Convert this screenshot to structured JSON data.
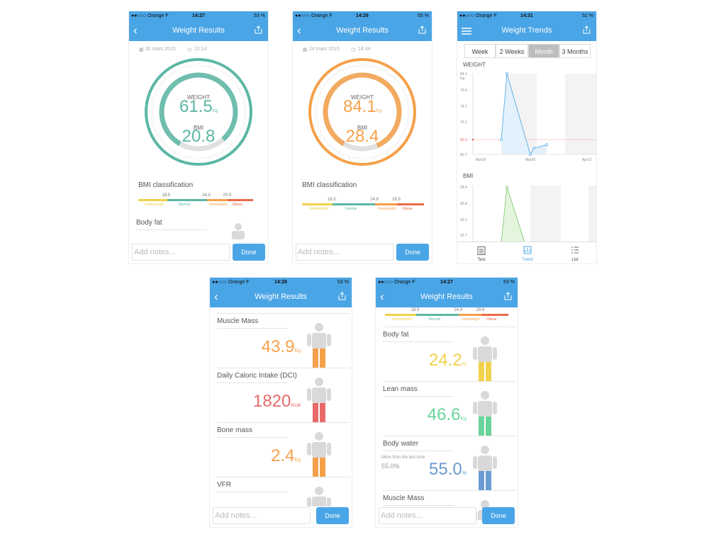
{
  "status": {
    "carrier": "●●○○○ Orange F",
    "time1": "14:27",
    "battery1": "53 %",
    "time2": "14:26",
    "battery2": "55 %",
    "time3": "14:31",
    "battery3": "52 %",
    "time4": "14:28",
    "battery4": "53 %",
    "time5": "14:27",
    "battery5": "53 %"
  },
  "nav": {
    "results_title": "Weight Results",
    "trends_title": "Weight Trends"
  },
  "screen1": {
    "date": "30 mars 2015",
    "time": "12:14",
    "weight_label": "WEIGHT",
    "weight_value": "61.5",
    "weight_unit": "Kg",
    "bmi_label": "BMI",
    "bmi_value": "20.8",
    "weight_progress": 0.8,
    "color": "#5bb7a4"
  },
  "screen2": {
    "date": "24 mars 2015",
    "time": "14:44",
    "weight_label": "WEIGHT",
    "weight_value": "84.1",
    "weight_unit": "Kg",
    "bmi_label": "BMI",
    "bmi_value": "28.4",
    "weight_progress": 0.85,
    "color": "#f5a04a"
  },
  "bmi": {
    "title": "BMI classification",
    "ticks": [
      "18.5",
      "24.9",
      "29.9"
    ],
    "classes": [
      "Underweight",
      "Normal",
      "Overweight",
      "Obese"
    ],
    "colors": [
      "#f1d14a",
      "#5bb7a4",
      "#f5a04a",
      "#e86a4a"
    ]
  },
  "body_fat_label": "Body fat",
  "notes": {
    "placeholder": "Add notes...",
    "done": "Done"
  },
  "trends": {
    "segments": [
      "Week",
      "2 Weeks",
      "Month",
      "3 Months"
    ],
    "selected": "Month",
    "weight_title": "WEIGHT",
    "weight_yticks": [
      "84.1",
      "79.4",
      "74.7",
      "70.1",
      "65.0",
      "60.7"
    ],
    "weight_unit": "Kg",
    "weight_xticks": [
      "Mar16",
      "Mar30",
      "Apr13"
    ],
    "weight_points": [
      65.0,
      84.1,
      60.7,
      62.5,
      63.5,
      65.0
    ],
    "bmi_title": "BMI",
    "bmi_yticks": [
      "28.4",
      "26.8",
      "25.2",
      "22.7"
    ],
    "tabs": [
      "Test",
      "Trend",
      "List"
    ],
    "target_weight": 65.0
  },
  "screen4": {
    "rows": [
      {
        "title": "Muscle Mass",
        "value": "43.9",
        "unit": "Kg",
        "color": "#f5a04a"
      },
      {
        "title": "Daily Caloric Intake (DCI)",
        "value": "1820",
        "unit": "Kcal",
        "color": "#e86a6a"
      },
      {
        "title": "Bone mass",
        "value": "2.4",
        "unit": "Kg",
        "color": "#f5a04a"
      },
      {
        "title": "VFR",
        "value": "",
        "unit": "",
        "color": "#999"
      }
    ]
  },
  "screen5": {
    "rows": [
      {
        "title": "Body fat",
        "value": "24.2",
        "unit": "%",
        "color": "#f1d14a"
      },
      {
        "title": "Lean mass",
        "value": "46.6",
        "unit": "Kg",
        "color": "#6ad39a"
      },
      {
        "title": "Body water",
        "value": "55.0",
        "unit": "%",
        "color": "#6a9ad3",
        "note": "More than the last time",
        "note_value": "55.0%"
      },
      {
        "title": "Muscle Mass",
        "value": "",
        "unit": "",
        "color": "#999"
      }
    ]
  }
}
